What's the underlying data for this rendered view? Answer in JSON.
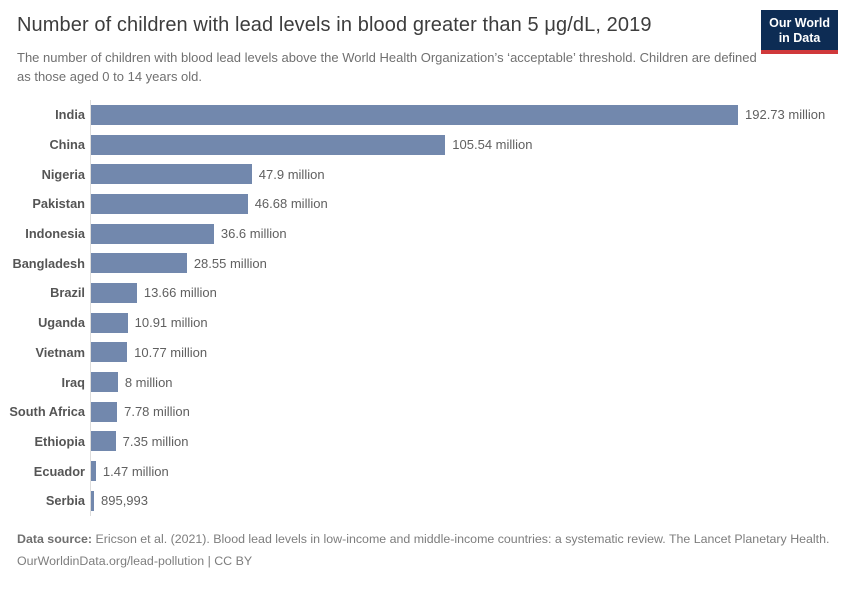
{
  "header": {
    "title": "Number of children with lead levels in blood greater than 5 μg/dL, 2019",
    "subtitle": "The number of children with blood lead levels above the World Health Organization’s ‘acceptable’ threshold. Children are defined as those aged 0 to 14 years old.",
    "logo": {
      "line1": "Our World",
      "line2": "in Data"
    }
  },
  "colors": {
    "bar": "#7288ad",
    "logo_bg": "#0d2c54",
    "logo_red": "#d0393b",
    "axis_line": "#dcdcdc"
  },
  "chart_data": {
    "type": "bar",
    "orientation": "horizontal",
    "title": "Number of children with lead levels in blood greater than 5 μg/dL, 2019",
    "xlabel": "",
    "ylabel": "",
    "unit": "children (millions)",
    "xlim": [
      0,
      192.73
    ],
    "grid": false,
    "legend": false,
    "categories": [
      "India",
      "China",
      "Nigeria",
      "Pakistan",
      "Indonesia",
      "Bangladesh",
      "Brazil",
      "Uganda",
      "Vietnam",
      "Iraq",
      "South Africa",
      "Ethiopia",
      "Ecuador",
      "Serbia"
    ],
    "values": [
      192.73,
      105.54,
      47.9,
      46.68,
      36.6,
      28.55,
      13.66,
      10.91,
      10.77,
      8,
      7.78,
      7.35,
      1.47,
      0.895993
    ],
    "value_labels": [
      "192.73 million",
      "105.54 million",
      "47.9 million",
      "46.68 million",
      "36.6 million",
      "28.55 million",
      "13.66 million",
      "10.91 million",
      "10.77 million",
      "8 million",
      "7.78 million",
      "7.35 million",
      "1.47 million",
      "895,993"
    ]
  },
  "footer": {
    "source_label": "Data source:",
    "source_text": "Ericson et al. (2021). Blood lead levels in low-income and middle-income countries: a systematic review. The Lancet Planetary Health.",
    "url": "OurWorldinData.org/lead-pollution",
    "separator": "|",
    "license": "CC BY"
  }
}
